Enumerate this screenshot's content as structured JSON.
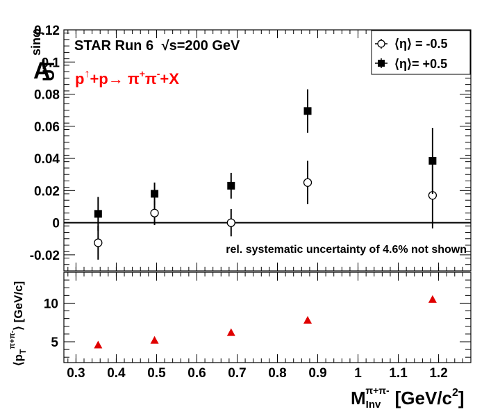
{
  "chart_data": [
    {
      "type": "scatter",
      "panel": "asymmetry",
      "ylabel": "A_UT^sinφ",
      "ylabel_main": "A",
      "ylabel_sub": "UT",
      "ylabel_sup": "sinφ",
      "xlim": [
        0.27,
        1.28
      ],
      "ylim": [
        -0.03,
        0.12
      ],
      "yticks": [
        -0.02,
        0,
        0.02,
        0.04,
        0.06,
        0.08,
        0.1,
        0.12
      ],
      "ytick_labels": [
        "-0.02",
        "0",
        "0.02",
        "0.04",
        "0.06",
        "0.08",
        "0.1",
        "0.12"
      ],
      "annotations": {
        "experiment": "STAR Run 6",
        "energy": "√s=200 GeV",
        "reaction": "p↑+p→ π+π-+X",
        "reaction_parts": {
          "p": "p",
          "arrow_up": "↑",
          "mid": "+p→ π",
          "sup1": "+",
          "pi2": "π",
          "sup2": "-",
          "end": "+X"
        },
        "systematic": "rel. systematic uncertainty of 4.6% not shown"
      },
      "legend": {
        "placement": "top-right"
      },
      "series": [
        {
          "name": "⟨η⟩ = -0.5",
          "marker": "open-circle",
          "x": [
            0.355,
            0.495,
            0.685,
            0.875,
            1.185
          ],
          "y": [
            -0.0125,
            0.006,
            0.0,
            0.025,
            0.017
          ],
          "yerr": [
            0.0105,
            0.0075,
            0.0085,
            0.0135,
            0.0205
          ]
        },
        {
          "name": "⟨η⟩= +0.5",
          "marker": "filled-square",
          "x": [
            0.355,
            0.495,
            0.685,
            0.875,
            1.185
          ],
          "y": [
            0.0055,
            0.018,
            0.023,
            0.0695,
            0.0385
          ],
          "yerr": [
            0.0105,
            0.007,
            0.008,
            0.0135,
            0.0205
          ]
        }
      ]
    },
    {
      "type": "scatter",
      "panel": "mean-pt",
      "ylabel": "⟨p_T^π+π-⟩ [GeV/c]",
      "ylabel_parts": {
        "open": "⟨p",
        "sub": "T",
        "sup": "π+π-",
        "close": "⟩ [GeV/c]"
      },
      "xlabel": "M_Inv^π+π- [GeV/c²]",
      "xlabel_parts": {
        "main": "M",
        "sub": "Inv",
        "sup": "π+π-",
        "unit": "[GeV/c",
        "unit_sup": "2",
        "unit_close": "]"
      },
      "xlim": [
        0.27,
        1.28
      ],
      "ylim": [
        2.3,
        14.0
      ],
      "yticks": [
        5,
        10
      ],
      "ytick_labels": [
        "5",
        "10"
      ],
      "xticks": [
        0.3,
        0.4,
        0.5,
        0.6,
        0.7,
        0.8,
        0.9,
        1.0,
        1.1,
        1.2
      ],
      "xtick_labels": [
        "0.3",
        "0.4",
        "0.5",
        "0.6",
        "0.7",
        "0.8",
        "0.9",
        "1",
        "1.1",
        "1.2"
      ],
      "series": [
        {
          "marker": "filled-triangle",
          "color": "#e00000",
          "x": [
            0.355,
            0.495,
            0.685,
            0.875,
            1.185
          ],
          "y": [
            4.6,
            5.2,
            6.2,
            7.8,
            10.5
          ]
        }
      ]
    }
  ],
  "colors": {
    "text": "#000000",
    "reaction": "#ff0000",
    "triangle": "#e00000"
  }
}
